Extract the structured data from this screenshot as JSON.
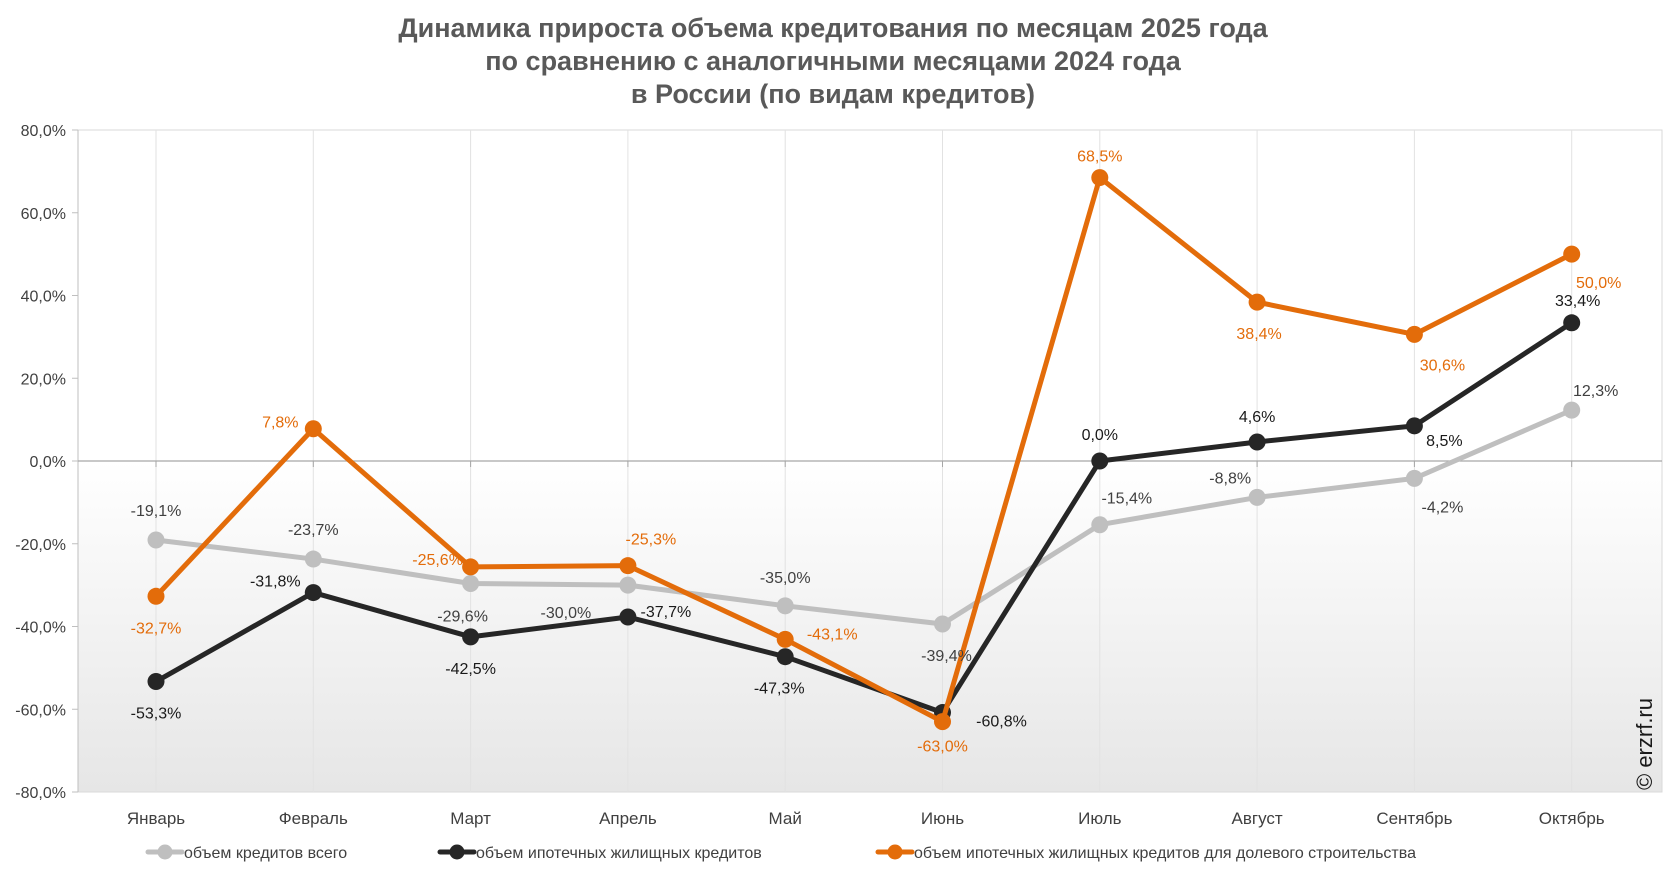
{
  "chart_data": {
    "type": "line",
    "title_lines": [
      "Динамика прироста объема кредитования по месяцам 2025 года",
      "по сравнению с аналогичными месяцами 2024 года",
      "в России (по видам кредитов)"
    ],
    "categories": [
      "Январь",
      "Февраль",
      "Март",
      "Апрель",
      "Май",
      "Июнь",
      "Июль",
      "Август",
      "Сентябрь",
      "Октябрь"
    ],
    "ylim": [
      -80,
      80
    ],
    "yticks": [
      80,
      60,
      40,
      20,
      0,
      -20,
      -40,
      -60,
      -80
    ],
    "ytick_labels": [
      "80,0%",
      "60,0%",
      "40,0%",
      "20,0%",
      "0,0%",
      "-20,0%",
      "-40,0%",
      "-60,0%",
      "-80,0%"
    ],
    "grid": "vertical",
    "legend_position": "bottom",
    "series": [
      {
        "name": "объем кредитов всего",
        "color": "#bfbfbf",
        "values": [
          -19.1,
          -23.7,
          -29.6,
          -30.0,
          -35.0,
          -39.4,
          -15.4,
          -8.8,
          -4.2,
          12.3
        ],
        "labels": [
          "-19,1%",
          "-23,7%",
          "-29,6%",
          "-30,0%",
          "-35,0%",
          "-39,4%",
          "-15,4%",
          "-8,8%",
          "-4,2%",
          "12,3%"
        ]
      },
      {
        "name": "объем ипотечных жилищных кредитов",
        "color": "#262626",
        "values": [
          -53.3,
          -31.8,
          -42.5,
          -37.7,
          -47.3,
          -60.8,
          0.0,
          4.6,
          8.5,
          33.4
        ],
        "labels": [
          "-53,3%",
          "-31,8%",
          "-42,5%",
          "-37,7%",
          "-47,3%",
          "-60,8%",
          "0,0%",
          "4,6%",
          "8,5%",
          "33,4%"
        ]
      },
      {
        "name": "объем ипотечных жилищных кредитов для долевого строительства",
        "color": "#e36c0a",
        "values": [
          -32.7,
          7.8,
          -25.6,
          -25.3,
          -43.1,
          -63.0,
          68.5,
          38.4,
          30.6,
          50.0
        ],
        "labels": [
          "-32,7%",
          "7,8%",
          "-25,6%",
          "-25,3%",
          "-43,1%",
          "-63,0%",
          "68,5%",
          "38,4%",
          "30,6%",
          "50,0%"
        ]
      }
    ],
    "watermark": "© erzrf.ru"
  }
}
